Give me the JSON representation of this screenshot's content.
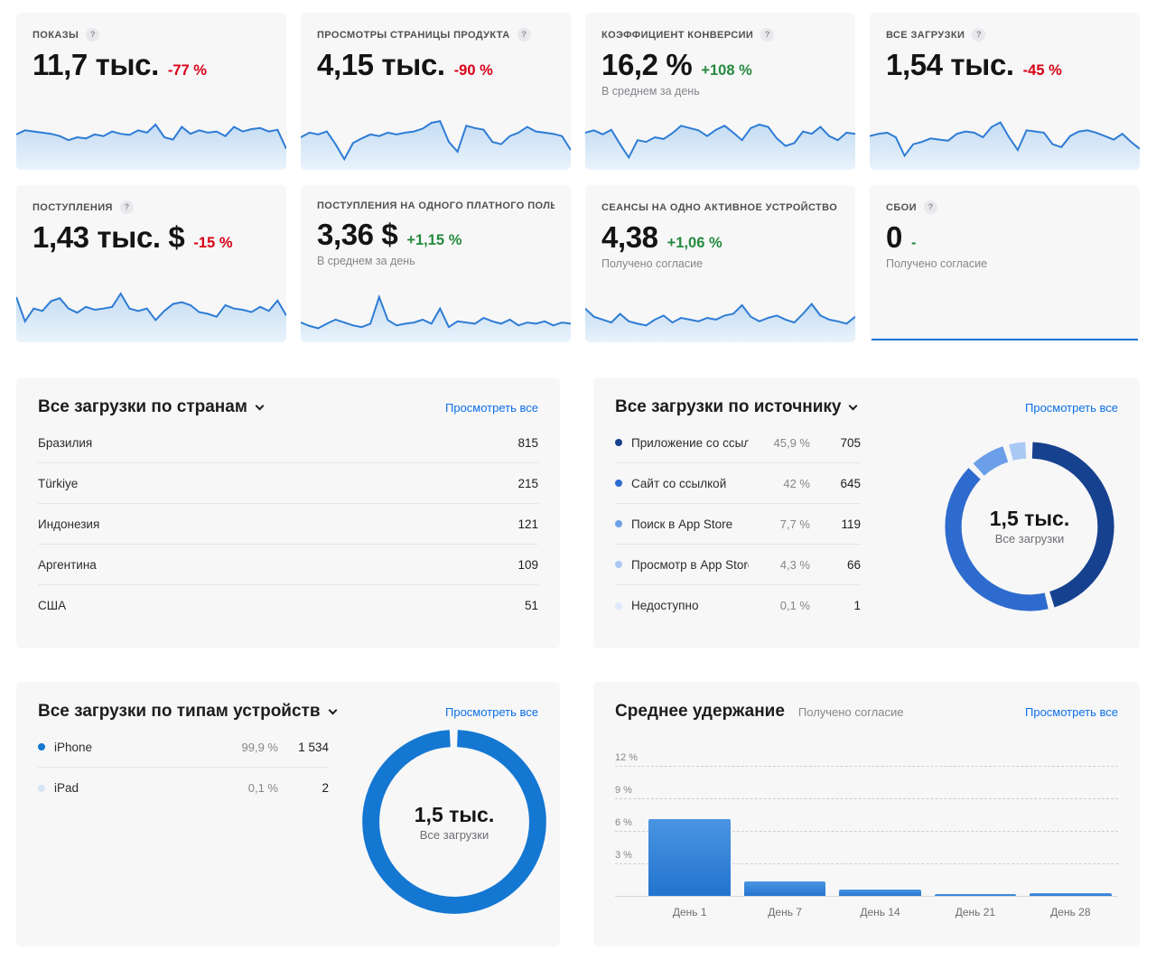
{
  "colors": {
    "accent_blue": "#1477d2",
    "link_blue": "#0b6fe8",
    "negative_red": "#d70015",
    "positive_green": "#248a3d",
    "spark_line": "#2e7cd5",
    "card_bg": "#f7f7f8"
  },
  "metrics": [
    {
      "label": "ПОКАЗЫ",
      "value": "11,7 тыс.",
      "delta": "-77 %",
      "dir": "down",
      "caption": "",
      "has_help": true,
      "spark": [
        55,
        62,
        60,
        58,
        56,
        52,
        45,
        50,
        48,
        55,
        52,
        60,
        56,
        54,
        62,
        58,
        72,
        50,
        46,
        68,
        56,
        62,
        58,
        60,
        52,
        68,
        60,
        64,
        66,
        60,
        63,
        30
      ]
    },
    {
      "label": "ПРОСМОТРЫ СТРАНИЦЫ ПРОДУКТА",
      "value": "4,15 тыс.",
      "delta": "-90 %",
      "dir": "down",
      "caption": "",
      "has_help": true,
      "spark": [
        50,
        58,
        55,
        60,
        38,
        12,
        40,
        48,
        55,
        52,
        58,
        55,
        58,
        60,
        65,
        75,
        78,
        42,
        25,
        70,
        66,
        63,
        42,
        38,
        52,
        58,
        68,
        60,
        58,
        56,
        52,
        28
      ]
    },
    {
      "label": "КОЭФФИЦИЕНТ КОНВЕРСИИ",
      "value": "16,2 %",
      "delta": "+108 %",
      "dir": "up",
      "caption": "В среднем за день",
      "has_help": true,
      "spark": [
        58,
        62,
        55,
        63,
        38,
        15,
        45,
        42,
        50,
        47,
        57,
        70,
        66,
        62,
        52,
        63,
        70,
        58,
        45,
        66,
        72,
        68,
        48,
        35,
        40,
        60,
        56,
        68,
        52,
        45,
        58,
        56
      ]
    },
    {
      "label": "ВСЕ ЗАГРУЗКИ",
      "value": "1,54 тыс.",
      "delta": "-45 %",
      "dir": "down",
      "caption": "",
      "has_help": true,
      "spark": [
        52,
        56,
        58,
        50,
        18,
        38,
        42,
        48,
        46,
        44,
        56,
        60,
        58,
        50,
        68,
        76,
        50,
        28,
        62,
        60,
        58,
        38,
        33,
        52,
        60,
        62,
        58,
        52,
        46,
        56,
        42,
        30
      ]
    },
    {
      "label": "ПОСТУПЛЕНИЯ",
      "value": "1,43 тыс. $",
      "delta": "-15 %",
      "dir": "down",
      "caption": "",
      "has_help": true,
      "spark": [
        72,
        30,
        52,
        48,
        65,
        70,
        52,
        45,
        55,
        50,
        52,
        55,
        78,
        52,
        48,
        52,
        32,
        48,
        60,
        63,
        58,
        46,
        43,
        38,
        58,
        52,
        50,
        46,
        55,
        48,
        66,
        40
      ]
    },
    {
      "label": "ПОСТУПЛЕНИЯ НА ОДНОГО ПЛАТНОГО ПОЛЬЗ",
      "value": "3,36 $",
      "delta": "+1,15 %",
      "dir": "up",
      "caption": "В среднем за день",
      "has_help": false,
      "spark": [
        28,
        22,
        18,
        26,
        33,
        28,
        23,
        20,
        26,
        72,
        32,
        23,
        26,
        28,
        33,
        26,
        52,
        20,
        30,
        28,
        26,
        36,
        30,
        26,
        33,
        23,
        28,
        26,
        30,
        23,
        28,
        26
      ]
    },
    {
      "label": "СЕАНСЫ НА ОДНО АКТИВНОЕ УСТРОЙСТВО",
      "value": "4,38",
      "delta": "+1,06 %",
      "dir": "up",
      "caption": "Получено согласие",
      "has_help": true,
      "spark": [
        52,
        38,
        33,
        28,
        43,
        30,
        26,
        23,
        33,
        40,
        28,
        36,
        33,
        30,
        36,
        33,
        40,
        43,
        58,
        38,
        30,
        36,
        40,
        33,
        28,
        43,
        60,
        40,
        33,
        30,
        26,
        38
      ]
    },
    {
      "label": "СБОИ",
      "value": "0",
      "delta": "-",
      "dir": "dash",
      "caption": "Получено согласие",
      "has_help": true,
      "flat": true,
      "spark": []
    }
  ],
  "countries_card": {
    "title": "Все загрузки по странам",
    "link": "Просмотреть все",
    "rows": [
      {
        "name": "Бразилия",
        "value": "815"
      },
      {
        "name": "Türkiye",
        "value": "215"
      },
      {
        "name": "Индонезия",
        "value": "121"
      },
      {
        "name": "Аргентина",
        "value": "109"
      },
      {
        "name": "США",
        "value": "51"
      }
    ]
  },
  "sources_card": {
    "title": "Все загрузки по источнику",
    "link": "Просмотреть все",
    "donut_center": {
      "value": "1,5 тыс.",
      "label": "Все загрузки"
    },
    "rows": [
      {
        "name": "Приложение со ссылкой",
        "pct": "45,9 %",
        "value": "705",
        "share": 45.9,
        "color": "#16418f"
      },
      {
        "name": "Сайт со ссылкой",
        "pct": "42 %",
        "value": "645",
        "share": 42,
        "color": "#2e6bce"
      },
      {
        "name": "Поиск в App Store",
        "pct": "7,7 %",
        "value": "119",
        "share": 7.7,
        "color": "#6b9fe8"
      },
      {
        "name": "Просмотр в App Store",
        "pct": "4,3 %",
        "value": "66",
        "share": 4.3,
        "color": "#a9c9f4"
      },
      {
        "name": "Недоступно",
        "pct": "0,1 %",
        "value": "1",
        "share": 0.1,
        "color": "#dde9fb"
      }
    ]
  },
  "devices_card": {
    "title": "Все загрузки по типам устройств",
    "link": "Просмотреть все",
    "donut_center": {
      "value": "1,5 тыс.",
      "label": "Все загрузки"
    },
    "rows": [
      {
        "name": "iPhone",
        "pct": "99,9 %",
        "value": "1 534",
        "share": 99.9,
        "color": "#1477d2"
      },
      {
        "name": "iPad",
        "pct": "0,1 %",
        "value": "2",
        "share": 0.1,
        "color": "#d6e4f8"
      }
    ]
  },
  "retention_card": {
    "title": "Среднее удержание",
    "subtitle": "Получено согласие",
    "link": "Просмотреть все",
    "chart": {
      "type": "bar",
      "categories": [
        "День 1",
        "День 7",
        "День 14",
        "День 21",
        "День 28"
      ],
      "values": [
        7.2,
        1.4,
        0.7,
        0.25,
        0.3
      ],
      "ymax": 13.2,
      "yticks": [
        {
          "value": 12,
          "label": "12 %"
        },
        {
          "value": 9,
          "label": "9 %"
        },
        {
          "value": 6,
          "label": "6 %"
        },
        {
          "value": 3,
          "label": "3 %"
        }
      ],
      "bar_color": "#2f7fd6"
    }
  }
}
